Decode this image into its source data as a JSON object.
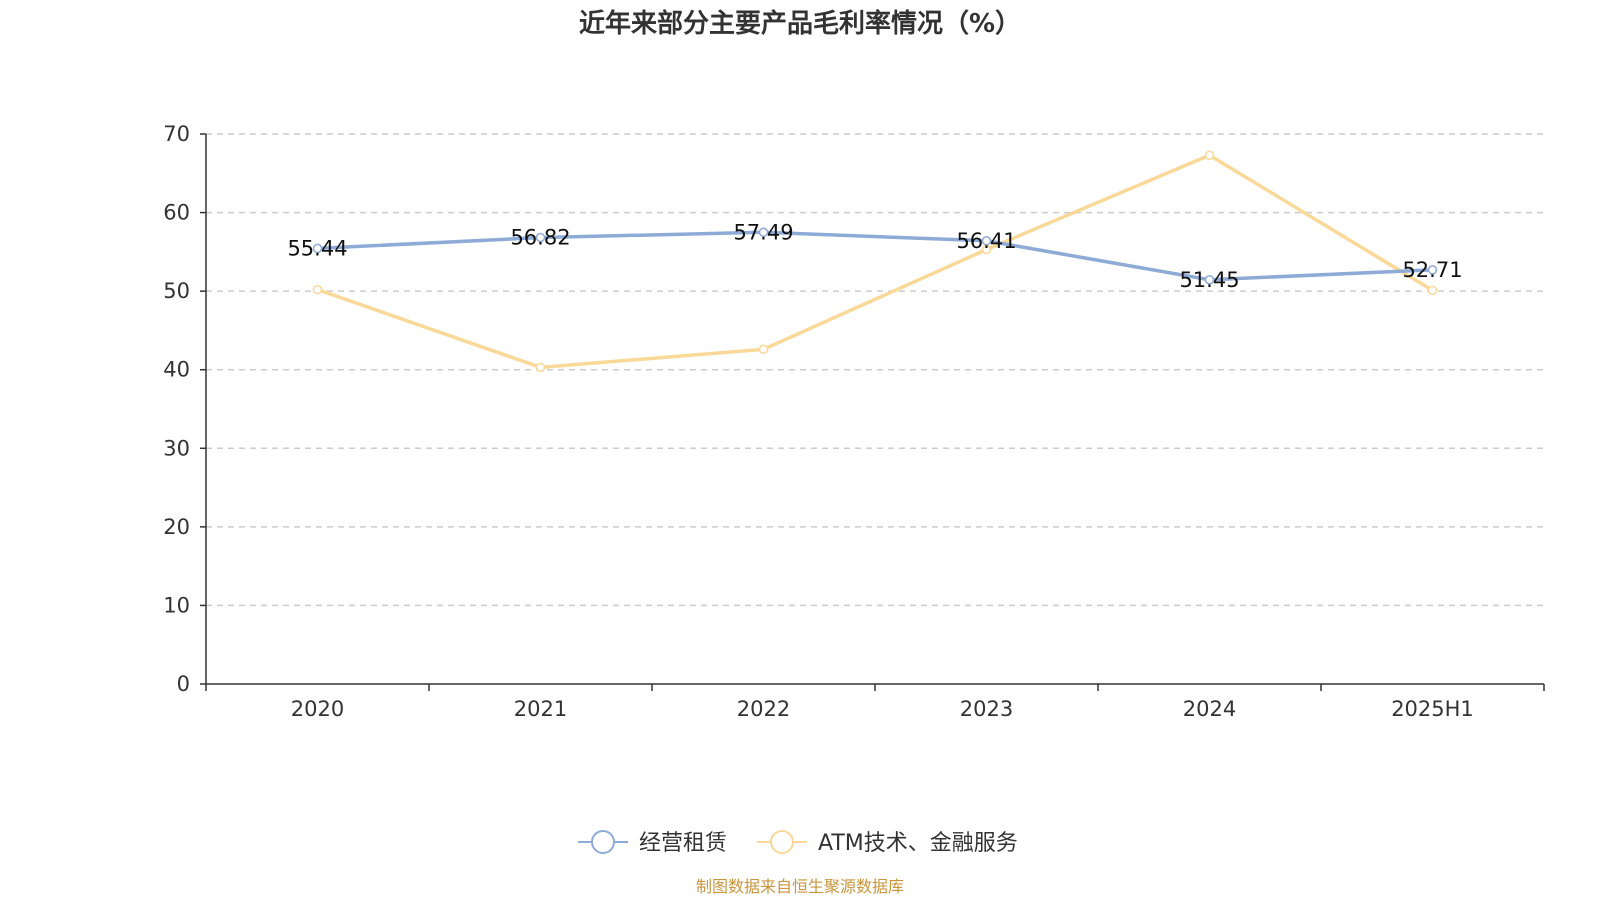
{
  "chart_data": {
    "type": "line",
    "title": "近年来部分主要产品毛利率情况（%）",
    "categories": [
      "2020",
      "2021",
      "2022",
      "2023",
      "2024",
      "2025H1"
    ],
    "ylim": [
      0,
      70
    ],
    "yticks": [
      0,
      10,
      20,
      30,
      40,
      50,
      60,
      70
    ],
    "grid": true,
    "legend_position": "bottom-center",
    "series": [
      {
        "name": "经营租赁",
        "color": "#8eaad6",
        "values": [
          55.44,
          56.82,
          57.49,
          56.41,
          51.45,
          52.71
        ],
        "labels": [
          "55.44",
          "56.82",
          "57.49",
          "56.41",
          "51.45",
          "52.71"
        ]
      },
      {
        "name": "ATM技术、金融服务",
        "color": "#f9d898",
        "values": [
          50.2,
          40.3,
          42.6,
          55.3,
          67.3,
          50.1
        ]
      }
    ],
    "source": "制图数据来自恒生聚源数据库"
  }
}
